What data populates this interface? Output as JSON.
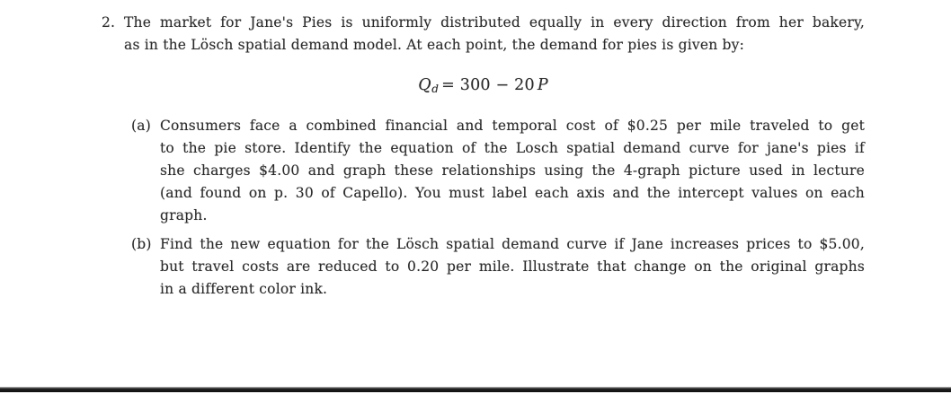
{
  "page": {
    "background_color": "#ffffff",
    "text_color": "#2a2a2a",
    "bottom_bar_color": "#1a1a1a"
  },
  "problem": {
    "number": "2.",
    "intro_lines": [
      "The market for Jane's Pies is uniformly distributed equally in every direction from her bakery,",
      "as in the Lösch spatial demand model. At each point, the demand for pies is given by:"
    ],
    "equation": {
      "var_q": "Q",
      "sub": "d",
      "mid": "= 300 − 20",
      "var_p": "P"
    },
    "parts": [
      {
        "label": "(a)",
        "lines": [
          "Consumers face a combined financial and temporal cost of $0.25 per mile traveled to get",
          "to the pie store. Identify the equation of the Losch spatial demand curve for jane's pies if",
          "she charges $4.00 and graph these relationships using the 4-graph picture used in lecture",
          "(and found on p. 30 of Capello). You must label each axis and the intercept values on each",
          "graph."
        ]
      },
      {
        "label": "(b)",
        "lines": [
          "Find the new equation for the Lösch spatial demand curve if Jane increases prices to $5.00,",
          "but travel costs are reduced to 0.20 per mile. Illustrate that change on the original graphs",
          "in a different color ink."
        ]
      }
    ]
  }
}
